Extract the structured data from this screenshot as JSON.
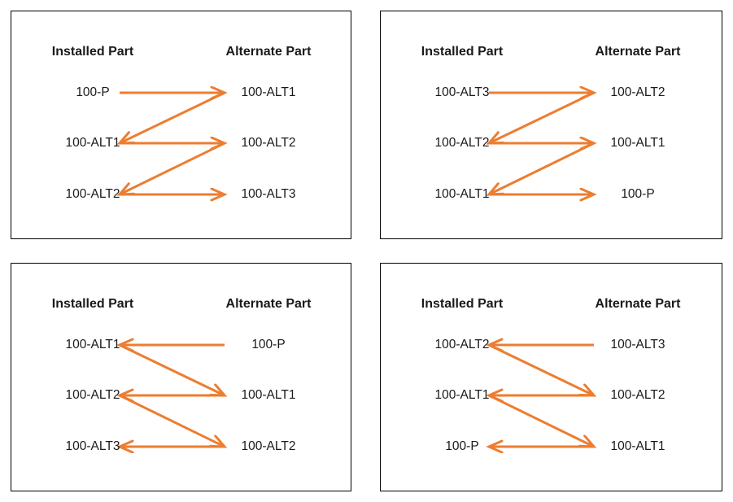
{
  "diagram": {
    "arrow_color": "#ED7D31",
    "border_color": "#000000",
    "text_color": "#1a1a1a",
    "headers": {
      "installed": "Installed Part",
      "alternate": "Alternate Part"
    },
    "panels": [
      {
        "name": "top-left",
        "installed_items": [
          "100-P",
          "100-ALT1",
          "100-ALT2"
        ],
        "alternate_items": [
          "100-ALT1",
          "100-ALT2",
          "100-ALT3"
        ],
        "arrows": [
          {
            "from": {
              "col": "left",
              "row": 0
            },
            "to": {
              "col": "right",
              "row": 0
            }
          },
          {
            "from": {
              "col": "right",
              "row": 0
            },
            "to": {
              "col": "left",
              "row": 1
            }
          },
          {
            "from": {
              "col": "left",
              "row": 1
            },
            "to": {
              "col": "right",
              "row": 1
            }
          },
          {
            "from": {
              "col": "right",
              "row": 1
            },
            "to": {
              "col": "left",
              "row": 2
            }
          },
          {
            "from": {
              "col": "left",
              "row": 2
            },
            "to": {
              "col": "right",
              "row": 2
            }
          }
        ]
      },
      {
        "name": "top-right",
        "installed_items": [
          "100-ALT3",
          "100-ALT2",
          "100-ALT1"
        ],
        "alternate_items": [
          "100-ALT2",
          "100-ALT1",
          "100-P"
        ],
        "arrows": [
          {
            "from": {
              "col": "left",
              "row": 0
            },
            "to": {
              "col": "right",
              "row": 0
            }
          },
          {
            "from": {
              "col": "right",
              "row": 0
            },
            "to": {
              "col": "left",
              "row": 1
            }
          },
          {
            "from": {
              "col": "left",
              "row": 1
            },
            "to": {
              "col": "right",
              "row": 1
            }
          },
          {
            "from": {
              "col": "right",
              "row": 1
            },
            "to": {
              "col": "left",
              "row": 2
            }
          },
          {
            "from": {
              "col": "left",
              "row": 2
            },
            "to": {
              "col": "right",
              "row": 2
            }
          }
        ]
      },
      {
        "name": "bottom-left",
        "installed_items": [
          "100-ALT1",
          "100-ALT2",
          "100-ALT3"
        ],
        "alternate_items": [
          "100-P",
          "100-ALT1",
          "100-ALT2"
        ],
        "arrows": [
          {
            "from": {
              "col": "right",
              "row": 0
            },
            "to": {
              "col": "left",
              "row": 0
            }
          },
          {
            "from": {
              "col": "left",
              "row": 0
            },
            "to": {
              "col": "right",
              "row": 1
            }
          },
          {
            "from": {
              "col": "right",
              "row": 1
            },
            "to": {
              "col": "left",
              "row": 1
            }
          },
          {
            "from": {
              "col": "left",
              "row": 1
            },
            "to": {
              "col": "right",
              "row": 2
            }
          },
          {
            "from": {
              "col": "right",
              "row": 2
            },
            "to": {
              "col": "left",
              "row": 2
            }
          }
        ]
      },
      {
        "name": "bottom-right",
        "installed_items": [
          "100-ALT2",
          "100-ALT1",
          "100-P"
        ],
        "alternate_items": [
          "100-ALT3",
          "100-ALT2",
          "100-ALT1"
        ],
        "arrows": [
          {
            "from": {
              "col": "right",
              "row": 0
            },
            "to": {
              "col": "left",
              "row": 0
            }
          },
          {
            "from": {
              "col": "left",
              "row": 0
            },
            "to": {
              "col": "right",
              "row": 1
            }
          },
          {
            "from": {
              "col": "right",
              "row": 1
            },
            "to": {
              "col": "left",
              "row": 1
            }
          },
          {
            "from": {
              "col": "left",
              "row": 1
            },
            "to": {
              "col": "right",
              "row": 2
            }
          },
          {
            "from": {
              "col": "right",
              "row": 2
            },
            "to": {
              "col": "left",
              "row": 2
            }
          }
        ]
      }
    ]
  }
}
